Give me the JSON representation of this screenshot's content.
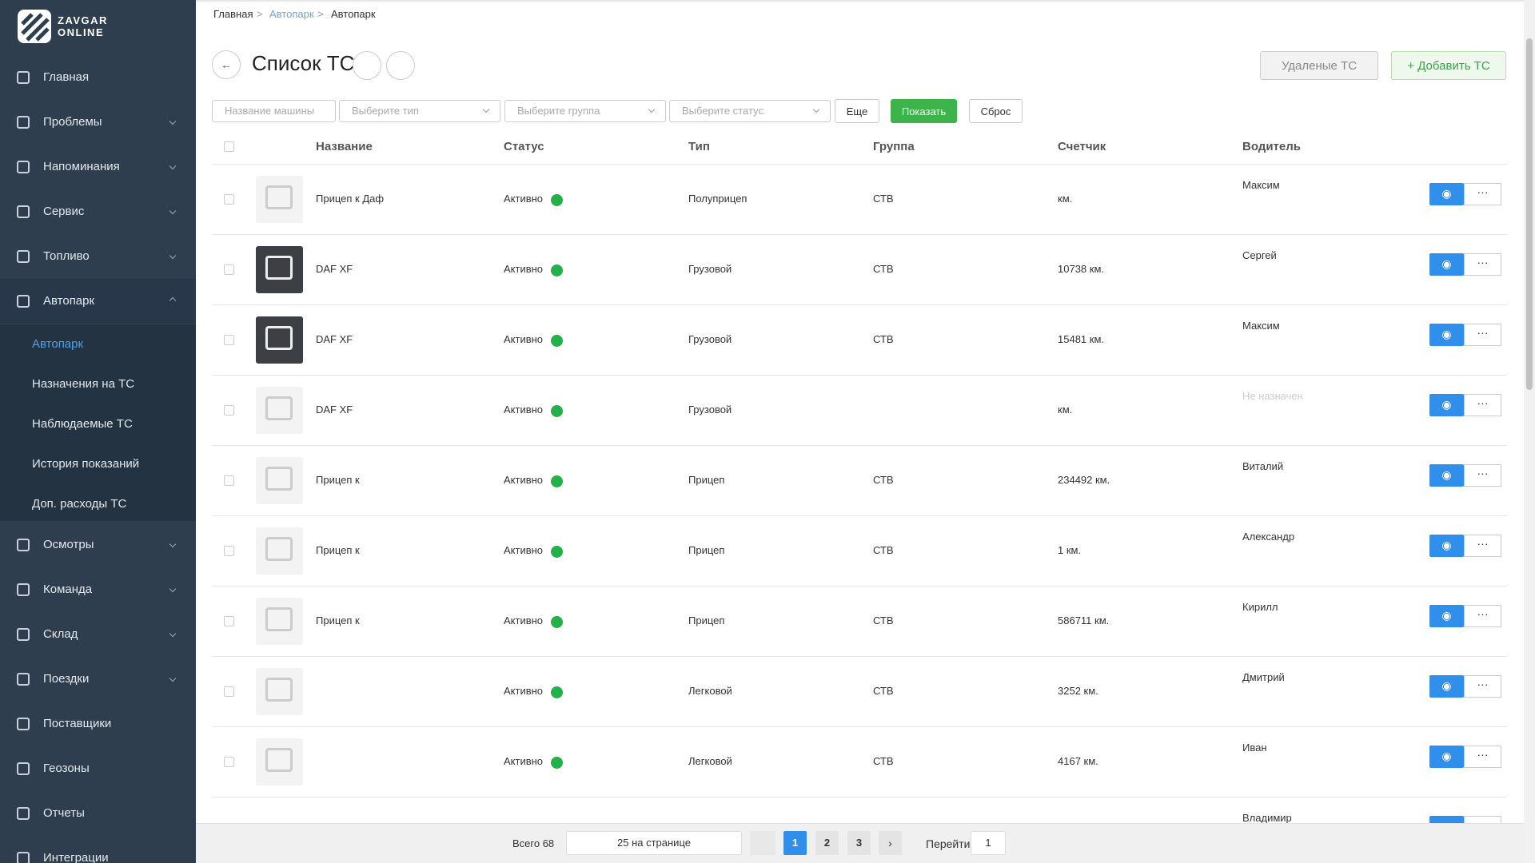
{
  "sidebar": {
    "logo_top": "ZAVGAR",
    "logo_bottom": "ONLINE",
    "items": [
      {
        "label": "Главная",
        "expandable": false
      },
      {
        "label": "Проблемы",
        "expandable": true
      },
      {
        "label": "Напоминания",
        "expandable": true
      },
      {
        "label": "Сервис",
        "expandable": true
      },
      {
        "label": "Топливо",
        "expandable": true
      },
      {
        "label": "Автопарк",
        "expandable": true,
        "open": true
      },
      {
        "label": "Осмотры",
        "expandable": true
      },
      {
        "label": "Команда",
        "expandable": true
      },
      {
        "label": "Склад",
        "expandable": true
      },
      {
        "label": "Поездки",
        "expandable": true
      },
      {
        "label": "Поставщики",
        "expandable": false
      },
      {
        "label": "Геозоны",
        "expandable": false
      },
      {
        "label": "Отчеты",
        "expandable": false
      },
      {
        "label": "Интеграции",
        "expandable": false
      }
    ],
    "submenu": [
      "Автопарк",
      "Назначения на ТС",
      "Наблюдаемые ТС",
      "История показаний",
      "Доп. расходы ТС"
    ]
  },
  "breadcrumb": [
    "Главная",
    "Автопарк",
    "Автопарк"
  ],
  "header": {
    "title": "Список ТС",
    "deleted_button": "Удаленые ТС",
    "add_button": "+ Добавить ТС"
  },
  "filters": {
    "inputs": [
      "Название машины",
      "Выберите тип",
      "Выберите группа",
      "Выберите статус"
    ],
    "more": "Еще",
    "show": "Показать",
    "reset": "Сброс"
  },
  "table": {
    "columns": [
      "Название",
      "Статус",
      "Тип",
      "Группа",
      "Счетчик",
      "Водитель"
    ],
    "rows": [
      {
        "name": "Прицеп к Даф",
        "status": "Активно",
        "type": "Полуприцеп",
        "group": "СТВ",
        "counter": "км.",
        "driver": "Максим"
      },
      {
        "name": "DAF XF",
        "status": "Активно",
        "type": "Грузовой",
        "group": "СТВ",
        "counter": "10738 км.",
        "driver": "Сергей"
      },
      {
        "name": "DAF XF",
        "status": "Активно",
        "type": "Грузовой",
        "group": "СТВ",
        "counter": "15481 км.",
        "driver": "Максим"
      },
      {
        "name": "DAF XF",
        "status": "Активно",
        "type": "Грузовой",
        "counter": "км.",
        "driver": "Не назначен"
      },
      {
        "name": "Прицеп к",
        "status": "Активно",
        "type": "Прицеп",
        "group": "СТВ",
        "counter": "234492 км.",
        "driver": "Виталий"
      },
      {
        "name": "Прицеп к",
        "status": "Активно",
        "type": "Прицеп",
        "group": "СТВ",
        "counter": "1 км.",
        "driver": "Александр"
      },
      {
        "name": "Прицеп к",
        "status": "Активно",
        "type": "Прицеп",
        "group": "СТВ",
        "counter": "586711 км.",
        "driver": "Кирилл"
      },
      {
        "status": "Активно",
        "type": "Легковой",
        "group": "СТВ",
        "counter": "3252 км.",
        "driver": "Дмитрий"
      },
      {
        "status": "Активно",
        "type": "Легковой",
        "group": "СТВ",
        "counter": "4167 км.",
        "driver": "Иван"
      },
      {
        "driver": "Владимир"
      }
    ]
  },
  "pagination": {
    "total": "Всего 68",
    "per_page": "25 на странице",
    "pages": [
      "1",
      "2",
      "3"
    ],
    "goto_label": "Перейти",
    "goto_value": "1"
  }
}
